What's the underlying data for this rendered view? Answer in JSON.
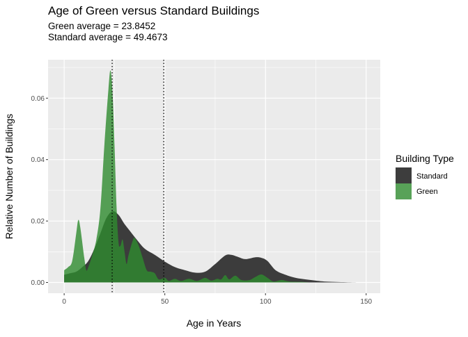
{
  "chart_data": {
    "type": "area",
    "title": "Age of Green versus Standard Buildings",
    "subtitle_lines": [
      "Green average = 23.8452",
      "Standard average = 49.4673"
    ],
    "xlabel": "Age in Years",
    "ylabel": "Relative Number of Buildings",
    "xlim": [
      -8,
      157
    ],
    "ylim": [
      -0.0035,
      0.0725
    ],
    "x_ticks": [
      0,
      50,
      100,
      150
    ],
    "x_tick_labels": [
      "0",
      "50",
      "100",
      "150"
    ],
    "y_ticks": [
      0,
      0.02,
      0.04,
      0.06
    ],
    "y_tick_labels": [
      "0.00",
      "0.02",
      "0.04",
      "0.06"
    ],
    "grid": true,
    "legend": {
      "title": "Building Type",
      "position": "right"
    },
    "vlines": [
      23.8452,
      49.4673
    ],
    "series": [
      {
        "name": "Standard",
        "color": "#333333",
        "opacity": 0.95,
        "points": [
          [
            0,
            0.0025
          ],
          [
            3,
            0.003
          ],
          [
            6,
            0.0035
          ],
          [
            9,
            0.005
          ],
          [
            12,
            0.007
          ],
          [
            15,
            0.011
          ],
          [
            18,
            0.016
          ],
          [
            21,
            0.021
          ],
          [
            24,
            0.0232
          ],
          [
            27,
            0.022
          ],
          [
            30,
            0.019
          ],
          [
            33,
            0.0165
          ],
          [
            36,
            0.014
          ],
          [
            40,
            0.011
          ],
          [
            45,
            0.009
          ],
          [
            50,
            0.0068
          ],
          [
            55,
            0.005
          ],
          [
            60,
            0.004
          ],
          [
            65,
            0.0032
          ],
          [
            70,
            0.0035
          ],
          [
            75,
            0.006
          ],
          [
            80,
            0.0088
          ],
          [
            83,
            0.009
          ],
          [
            86,
            0.0084
          ],
          [
            90,
            0.0076
          ],
          [
            95,
            0.0082
          ],
          [
            98,
            0.008
          ],
          [
            101,
            0.007
          ],
          [
            105,
            0.004
          ],
          [
            110,
            0.0025
          ],
          [
            115,
            0.0015
          ],
          [
            120,
            0.001
          ],
          [
            125,
            0.0006
          ],
          [
            130,
            0.0003
          ],
          [
            140,
            0.0001
          ],
          [
            148,
            0.0
          ]
        ]
      },
      {
        "name": "Green",
        "color": "#2e8b2e",
        "opacity": 0.8,
        "points": [
          [
            0,
            0.004
          ],
          [
            2,
            0.005
          ],
          [
            4,
            0.007
          ],
          [
            6,
            0.016
          ],
          [
            7,
            0.0203
          ],
          [
            8,
            0.018
          ],
          [
            10,
            0.008
          ],
          [
            11,
            0.004
          ],
          [
            12,
            0.005
          ],
          [
            14,
            0.009
          ],
          [
            16,
            0.014
          ],
          [
            18,
            0.024
          ],
          [
            20,
            0.045
          ],
          [
            22,
            0.063
          ],
          [
            23,
            0.069
          ],
          [
            24,
            0.062
          ],
          [
            25,
            0.045
          ],
          [
            26,
            0.025
          ],
          [
            27,
            0.013
          ],
          [
            28,
            0.012
          ],
          [
            29,
            0.014
          ],
          [
            30,
            0.01
          ],
          [
            31,
            0.006
          ],
          [
            32,
            0.009
          ],
          [
            34,
            0.0135
          ],
          [
            35,
            0.0145
          ],
          [
            37,
            0.012
          ],
          [
            39,
            0.008
          ],
          [
            41,
            0.004
          ],
          [
            43,
            0.0035
          ],
          [
            45,
            0.003
          ],
          [
            47,
            0.001
          ],
          [
            50,
            0.0015
          ],
          [
            52,
            0.0005
          ],
          [
            55,
            0.0012
          ],
          [
            58,
            0.0005
          ],
          [
            62,
            0.0012
          ],
          [
            66,
            0.0005
          ],
          [
            70,
            0.0015
          ],
          [
            73,
            0.0006
          ],
          [
            76,
            0.0012
          ],
          [
            78,
            0.001
          ],
          [
            80,
            0.0024
          ],
          [
            82,
            0.001
          ],
          [
            85,
            0.0022
          ],
          [
            88,
            0.0008
          ],
          [
            92,
            0.0008
          ],
          [
            95,
            0.0018
          ],
          [
            98,
            0.0026
          ],
          [
            101,
            0.0015
          ],
          [
            104,
            0.0003
          ],
          [
            108,
            0.0008
          ],
          [
            112,
            0.0003
          ],
          [
            118,
            0.0002
          ],
          [
            122,
            0.0
          ]
        ]
      }
    ]
  }
}
